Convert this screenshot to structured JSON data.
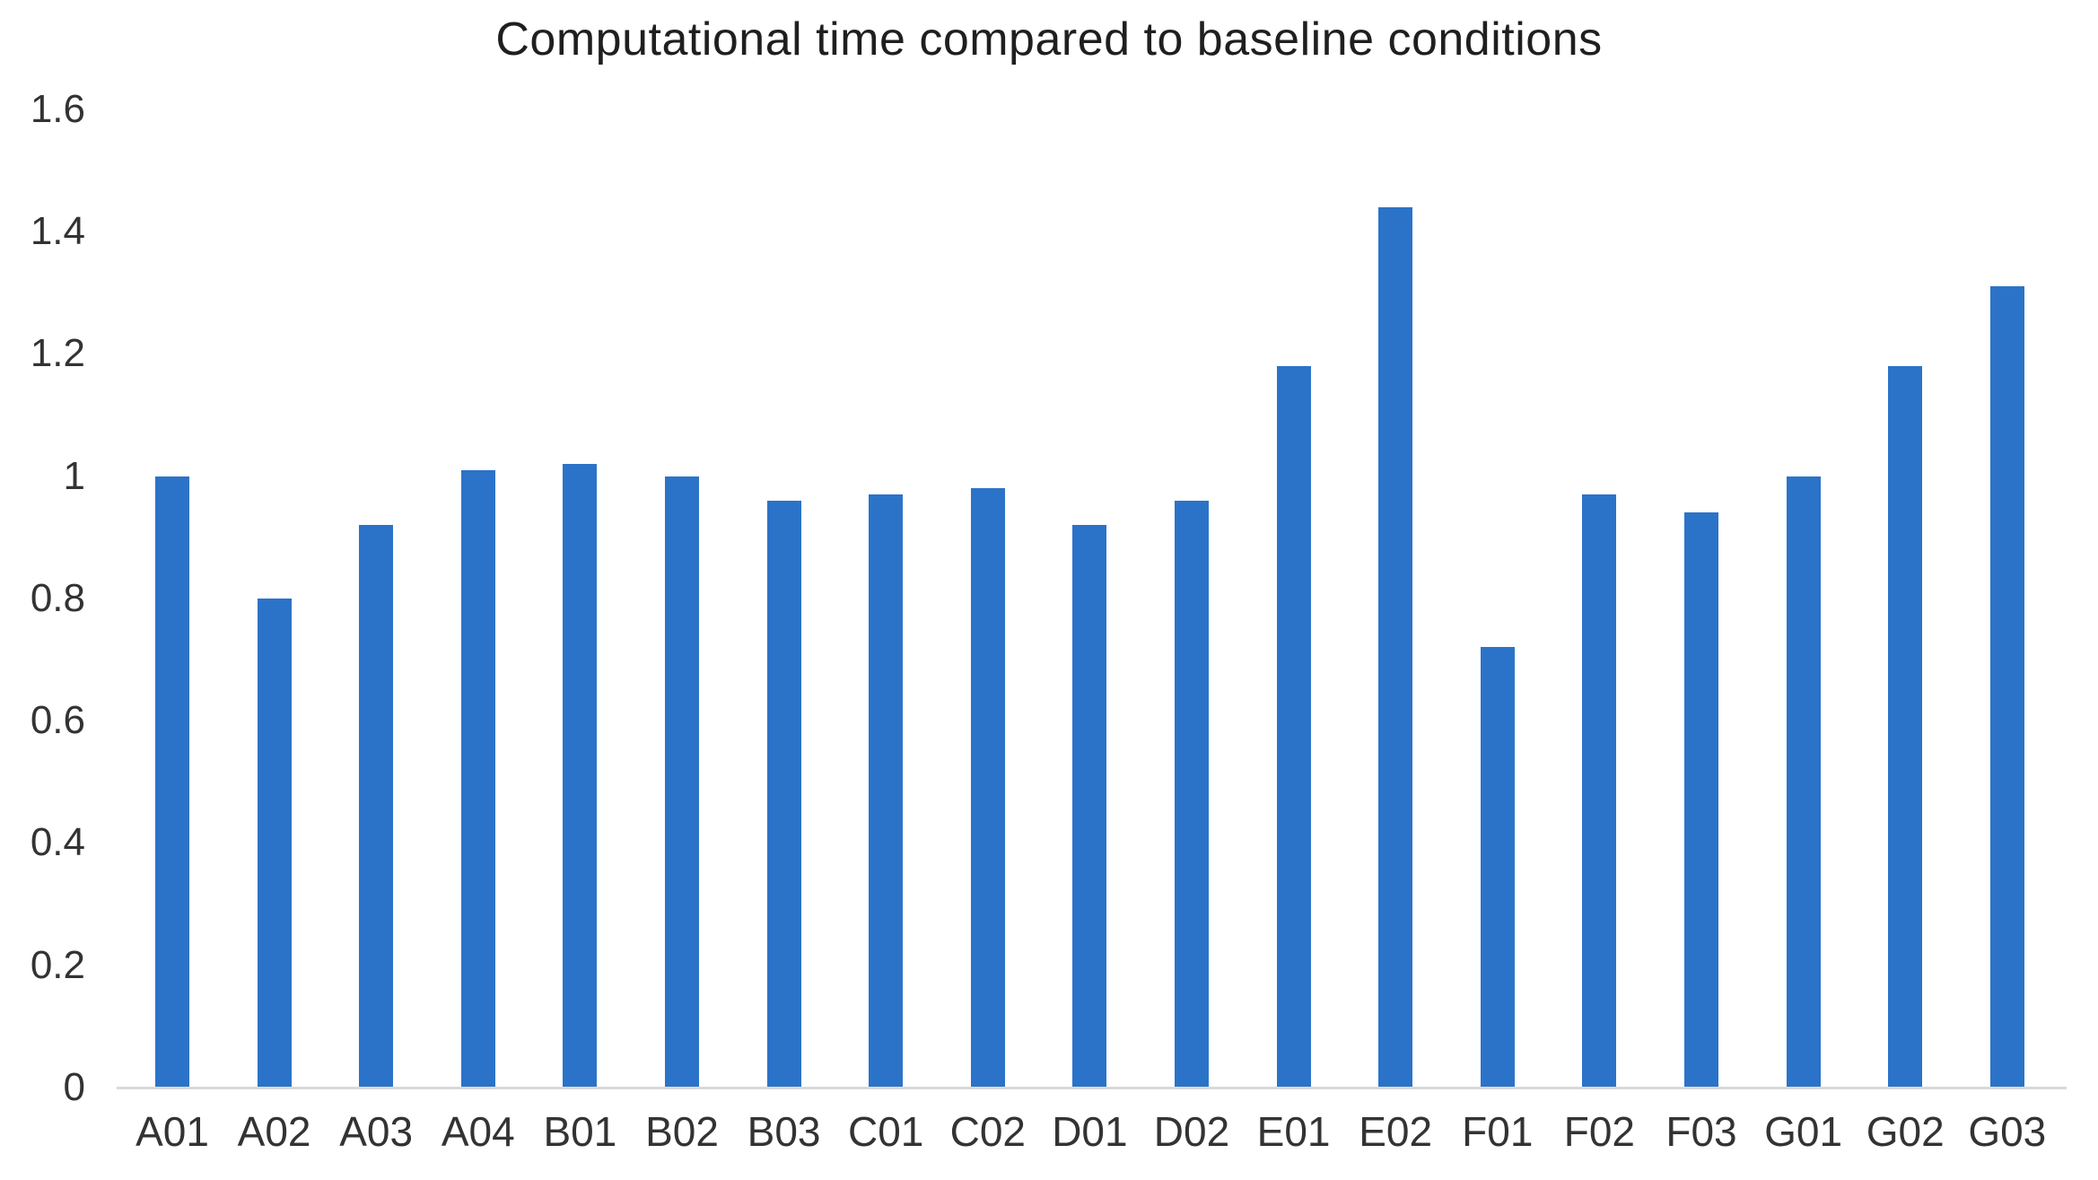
{
  "chart_data": {
    "type": "bar",
    "title": "Computational time compared to baseline conditions",
    "xlabel": "",
    "ylabel": "",
    "categories": [
      "A01",
      "A02",
      "A03",
      "A04",
      "B01",
      "B02",
      "B03",
      "C01",
      "C02",
      "D01",
      "D02",
      "E01",
      "E02",
      "F01",
      "F02",
      "F03",
      "G01",
      "G02",
      "G03"
    ],
    "values": [
      1.0,
      0.8,
      0.92,
      1.01,
      1.02,
      1.0,
      0.96,
      0.97,
      0.98,
      0.92,
      0.96,
      1.18,
      1.44,
      0.72,
      0.97,
      0.94,
      1.0,
      1.18,
      1.31
    ],
    "ylim": [
      0,
      1.6
    ],
    "ytick_labels": [
      "0",
      "0.2",
      "0.4",
      "0.6",
      "0.8",
      "1",
      "1.2",
      "1.4",
      "1.6"
    ],
    "grid": false,
    "legend": false,
    "bar_color": "#2b73c8",
    "axis_line_color": "#d9d9d9",
    "title_color": "#1f1f1f",
    "tick_label_color": "#333333"
  }
}
